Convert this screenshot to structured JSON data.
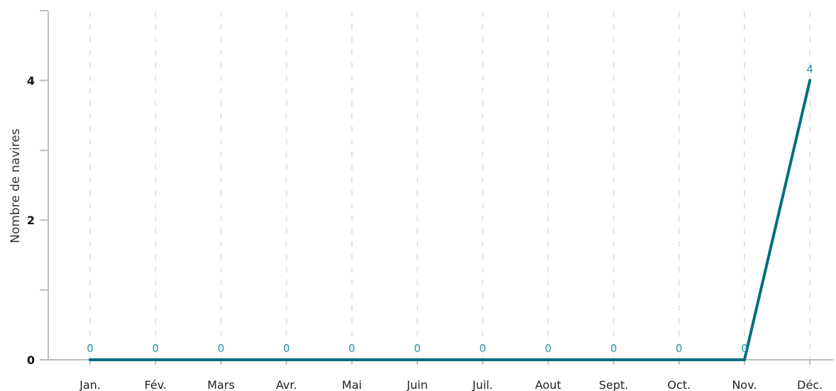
{
  "chart_data": {
    "type": "line",
    "title": "",
    "xlabel": "",
    "ylabel": "Nombre de navires",
    "categories": [
      "Jan.",
      "Fév.",
      "Mars",
      "Avr.",
      "Mai",
      "Juin",
      "Juil.",
      "Aout",
      "Sept.",
      "Oct.",
      "Nov.",
      "Déc."
    ],
    "values": [
      0,
      0,
      0,
      0,
      0,
      0,
      0,
      0,
      0,
      0,
      0,
      4
    ],
    "data_labels": [
      "0",
      "0",
      "0",
      "0",
      "0",
      "0",
      "0",
      "0",
      "0",
      "0",
      "0",
      "4"
    ],
    "ylim": [
      0,
      5
    ],
    "yticks_labeled": [
      "0",
      "2",
      "4"
    ],
    "grid": "vertical dashed",
    "legend": "none",
    "colors": {
      "line": "#006f7d",
      "label": "#2a93a6",
      "grid": "#e3e3e3",
      "axis": "#bdbdbd"
    }
  }
}
